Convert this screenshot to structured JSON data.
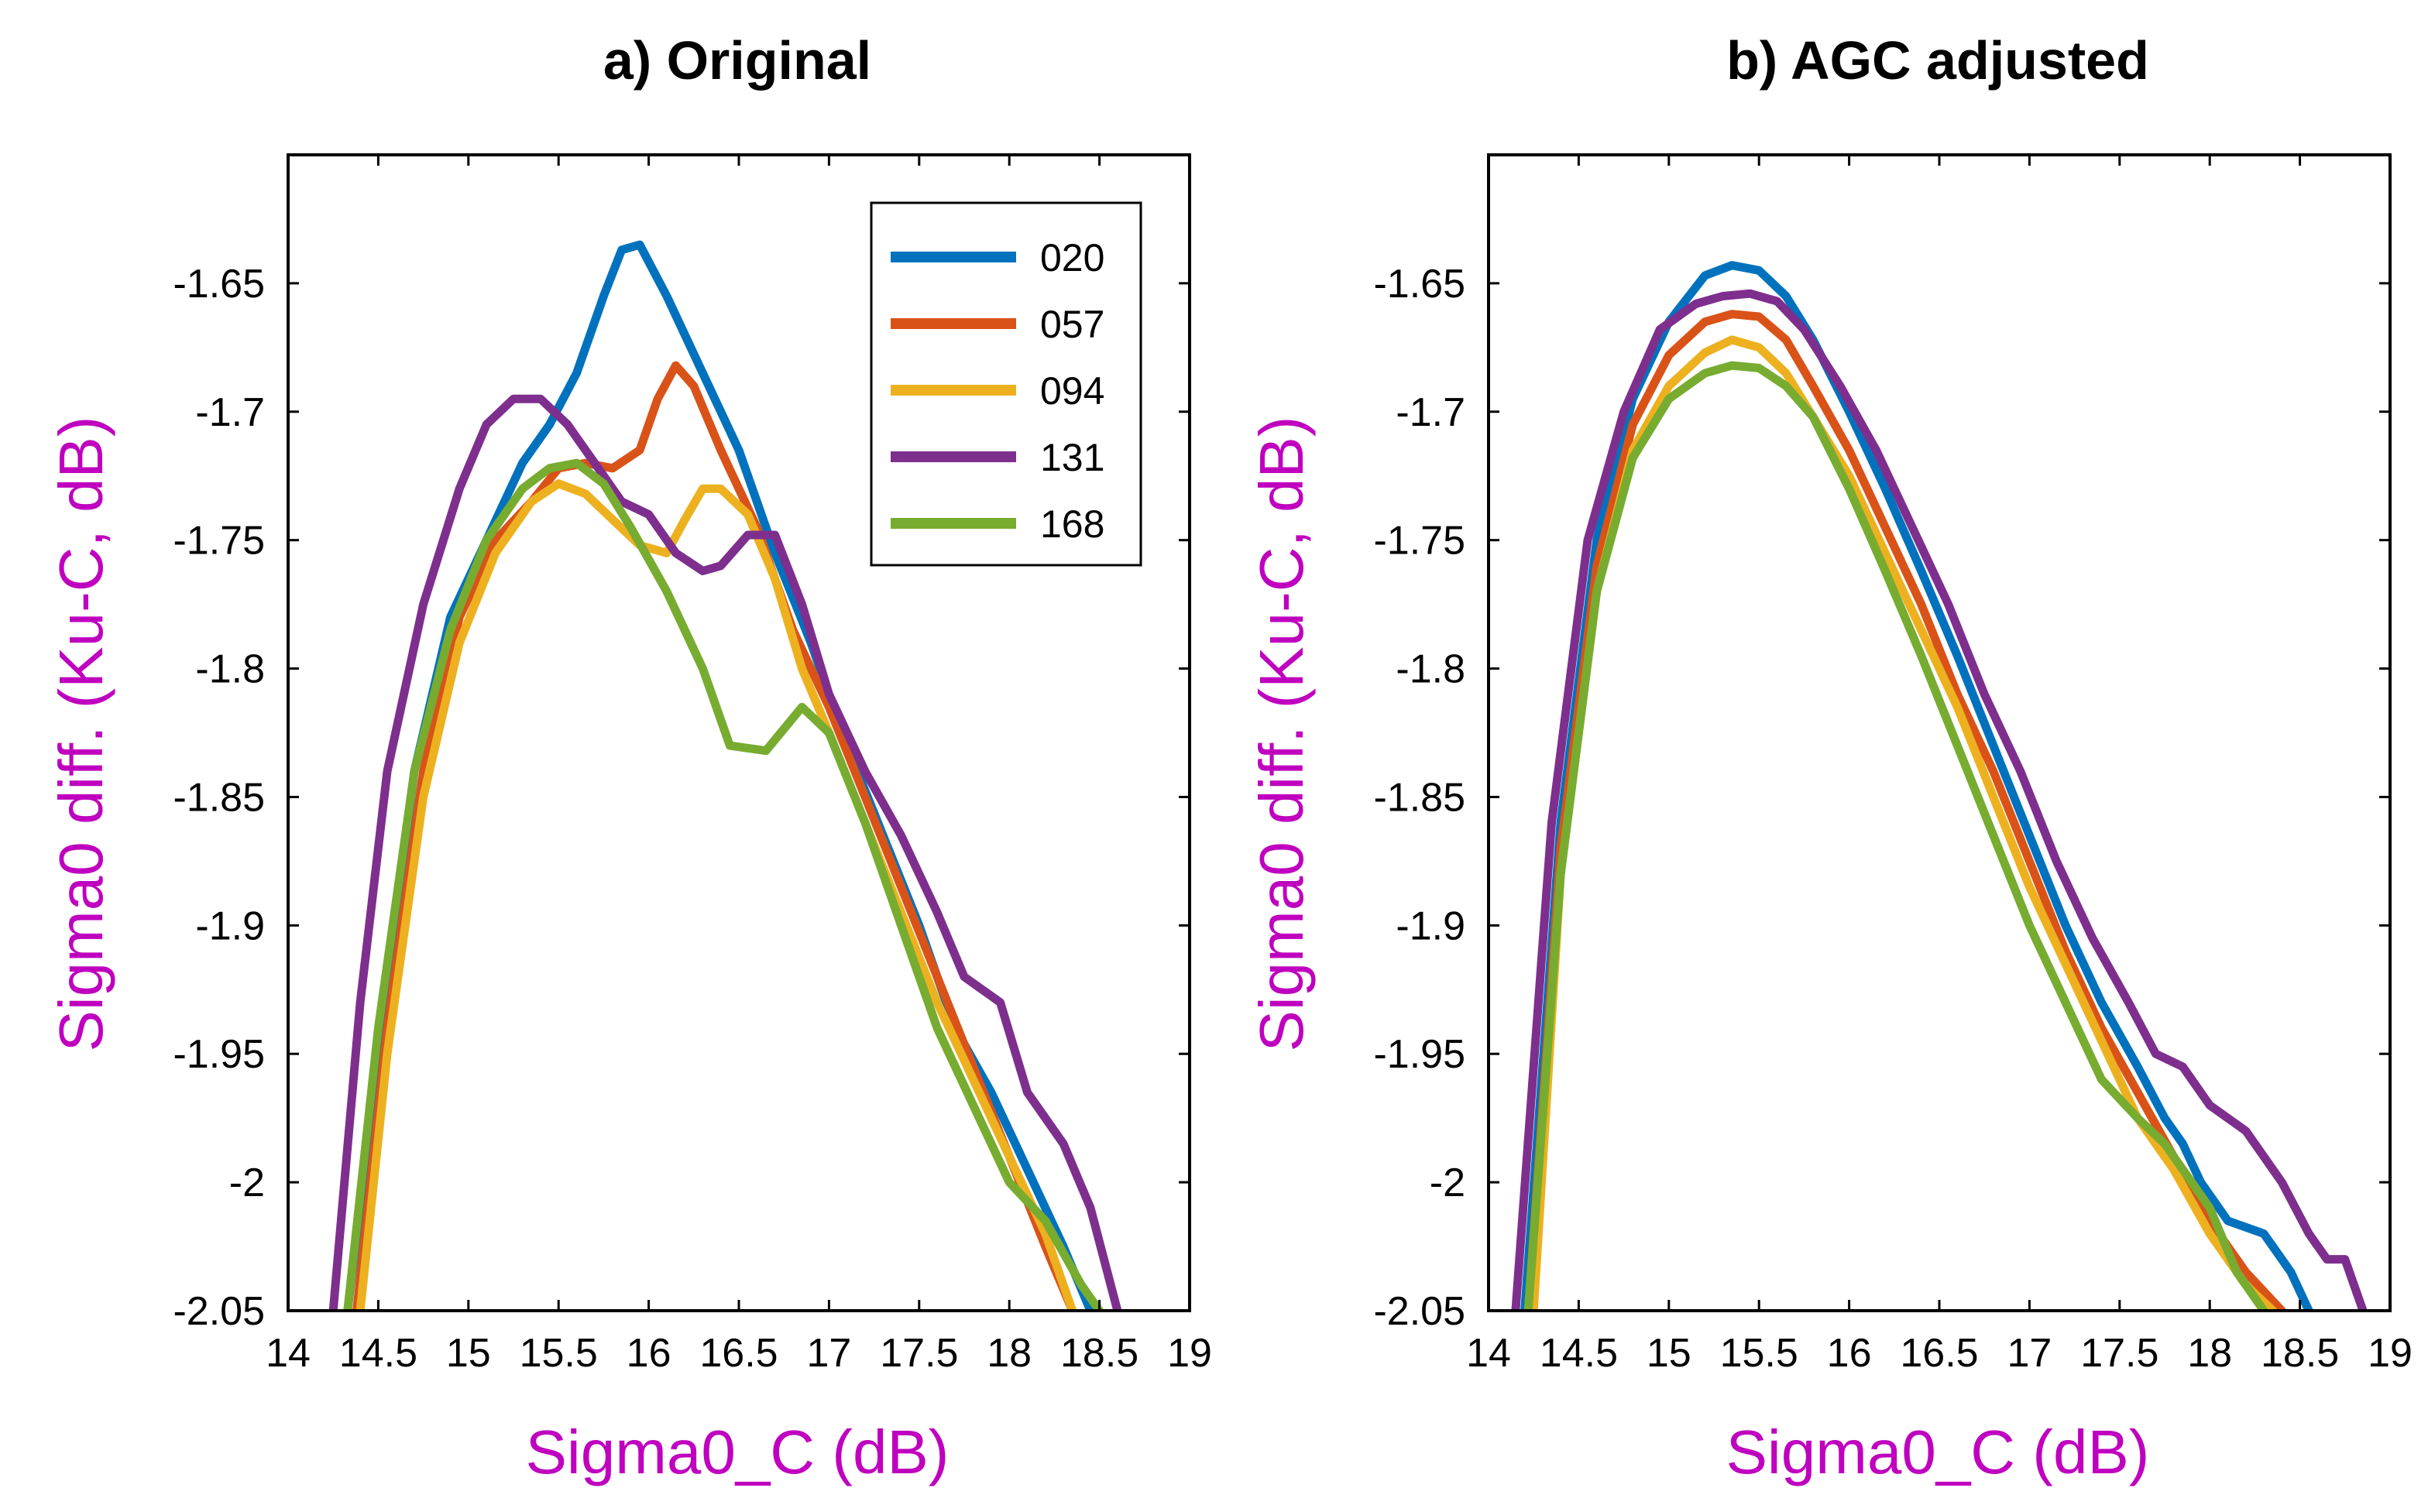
{
  "colors": {
    "axis_label": "#bf00bf",
    "axis": "#000000",
    "series": [
      "#0072bd",
      "#d95319",
      "#edb120",
      "#7e2f8e",
      "#77ac30"
    ]
  },
  "chart_data": [
    {
      "type": "line",
      "title": "a)  Original",
      "xlabel": "Sigma0_C (dB)",
      "ylabel": "Sigma0 diff. (Ku-C, dB)",
      "xlim": [
        14,
        19
      ],
      "ylim": [
        -2.05,
        -1.6
      ],
      "xticks": [
        14,
        14.5,
        15,
        15.5,
        16,
        16.5,
        17,
        17.5,
        18,
        18.5,
        19
      ],
      "xtick_labels": [
        "14",
        "14.5",
        "15",
        "15.5",
        "16",
        "16.5",
        "17",
        "17.5",
        "18",
        "18.5",
        "19"
      ],
      "yticks": [
        -1.65,
        -1.7,
        -1.75,
        -1.8,
        -1.85,
        -1.9,
        -1.95,
        -2,
        -2.05
      ],
      "ytick_labels": [
        "-1.65",
        "-1.7",
        "-1.75",
        "-1.8",
        "-1.85",
        "-1.9",
        "-1.95",
        "-2",
        "-2.05"
      ],
      "legend": {
        "location": "top-right",
        "entries": [
          "020",
          "057",
          "094",
          "131",
          "168"
        ]
      },
      "series": [
        {
          "name": "020",
          "x": [
            14.33,
            14.5,
            14.7,
            14.9,
            15.1,
            15.3,
            15.45,
            15.6,
            15.75,
            15.85,
            15.95,
            16.1,
            16.3,
            16.5,
            16.7,
            16.9,
            17.1,
            17.3,
            17.5,
            17.7,
            17.9,
            18.1,
            18.3,
            18.45
          ],
          "y": [
            -2.05,
            -1.95,
            -1.84,
            -1.78,
            -1.75,
            -1.72,
            -1.705,
            -1.685,
            -1.655,
            -1.637,
            -1.635,
            -1.655,
            -1.685,
            -1.715,
            -1.755,
            -1.79,
            -1.83,
            -1.865,
            -1.9,
            -1.94,
            -1.965,
            -1.995,
            -2.025,
            -2.05
          ]
        },
        {
          "name": "057",
          "x": [
            14.38,
            14.55,
            14.75,
            14.95,
            15.15,
            15.35,
            15.5,
            15.65,
            15.8,
            15.95,
            16.05,
            16.15,
            16.25,
            16.4,
            16.6,
            16.8,
            17.0,
            17.2,
            17.4,
            17.6,
            17.8,
            18.0,
            18.2,
            18.35
          ],
          "y": [
            -2.05,
            -1.94,
            -1.84,
            -1.78,
            -1.75,
            -1.735,
            -1.722,
            -1.72,
            -1.722,
            -1.715,
            -1.695,
            -1.682,
            -1.69,
            -1.715,
            -1.745,
            -1.785,
            -1.815,
            -1.85,
            -1.885,
            -1.92,
            -1.955,
            -1.99,
            -2.025,
            -2.05
          ]
        },
        {
          "name": "094",
          "x": [
            14.4,
            14.55,
            14.75,
            14.95,
            15.15,
            15.35,
            15.5,
            15.65,
            15.8,
            15.95,
            16.1,
            16.2,
            16.3,
            16.4,
            16.55,
            16.7,
            16.85,
            17.0,
            17.2,
            17.4,
            17.6,
            17.8,
            18.0,
            18.2,
            18.35
          ],
          "y": [
            -2.05,
            -1.95,
            -1.85,
            -1.79,
            -1.755,
            -1.735,
            -1.728,
            -1.732,
            -1.742,
            -1.752,
            -1.755,
            -1.742,
            -1.73,
            -1.73,
            -1.74,
            -1.765,
            -1.8,
            -1.825,
            -1.86,
            -1.895,
            -1.93,
            -1.96,
            -1.99,
            -2.02,
            -2.05
          ]
        },
        {
          "name": "131",
          "x": [
            14.25,
            14.4,
            14.55,
            14.75,
            14.95,
            15.1,
            15.25,
            15.4,
            15.55,
            15.7,
            15.85,
            16.0,
            16.15,
            16.3,
            16.4,
            16.55,
            16.7,
            16.85,
            17.0,
            17.2,
            17.4,
            17.6,
            17.75,
            17.95,
            18.1,
            18.3,
            18.45,
            18.6
          ],
          "y": [
            -2.05,
            -1.93,
            -1.84,
            -1.775,
            -1.73,
            -1.705,
            -1.695,
            -1.695,
            -1.705,
            -1.72,
            -1.735,
            -1.74,
            -1.755,
            -1.762,
            -1.76,
            -1.748,
            -1.748,
            -1.775,
            -1.81,
            -1.84,
            -1.865,
            -1.895,
            -1.92,
            -1.93,
            -1.965,
            -1.985,
            -2.01,
            -2.05
          ]
        },
        {
          "name": "168",
          "x": [
            14.33,
            14.5,
            14.7,
            14.9,
            15.1,
            15.3,
            15.45,
            15.6,
            15.75,
            15.9,
            16.1,
            16.3,
            16.45,
            16.65,
            16.85,
            17.0,
            17.2,
            17.4,
            17.6,
            17.8,
            18.0,
            18.2,
            18.4,
            18.5
          ],
          "y": [
            -2.05,
            -1.94,
            -1.84,
            -1.785,
            -1.75,
            -1.73,
            -1.722,
            -1.72,
            -1.728,
            -1.745,
            -1.77,
            -1.8,
            -1.83,
            -1.832,
            -1.815,
            -1.825,
            -1.86,
            -1.9,
            -1.94,
            -1.97,
            -2.0,
            -2.015,
            -2.04,
            -2.05
          ]
        }
      ]
    },
    {
      "type": "line",
      "title": "b)  AGC adjusted",
      "xlabel": "Sigma0_C (dB)",
      "ylabel": "Sigma0 diff. (Ku-C, dB)",
      "xlim": [
        14,
        19
      ],
      "ylim": [
        -2.05,
        -1.6
      ],
      "xticks": [
        14,
        14.5,
        15,
        15.5,
        16,
        16.5,
        17,
        17.5,
        18,
        18.5,
        19
      ],
      "xtick_labels": [
        "14",
        "14.5",
        "15",
        "15.5",
        "16",
        "16.5",
        "17",
        "17.5",
        "18",
        "18.5",
        "19"
      ],
      "yticks": [
        -1.65,
        -1.7,
        -1.75,
        -1.8,
        -1.85,
        -1.9,
        -1.95,
        -2,
        -2.05
      ],
      "ytick_labels": [
        "-1.65",
        "-1.7",
        "-1.75",
        "-1.8",
        "-1.85",
        "-1.9",
        "-1.95",
        "-2",
        "-2.05"
      ],
      "series": [
        {
          "name": "020",
          "x": [
            14.2,
            14.4,
            14.6,
            14.8,
            15.0,
            15.2,
            15.35,
            15.5,
            15.65,
            15.8,
            16.0,
            16.2,
            16.4,
            16.6,
            16.8,
            17.0,
            17.2,
            17.4,
            17.6,
            17.75,
            17.85,
            17.95,
            18.1,
            18.3,
            18.45,
            18.55
          ],
          "y": [
            -2.05,
            -1.86,
            -1.75,
            -1.695,
            -1.665,
            -1.647,
            -1.643,
            -1.645,
            -1.655,
            -1.672,
            -1.7,
            -1.73,
            -1.762,
            -1.795,
            -1.83,
            -1.865,
            -1.9,
            -1.93,
            -1.955,
            -1.975,
            -1.985,
            -2.0,
            -2.015,
            -2.02,
            -2.035,
            -2.05
          ]
        },
        {
          "name": "057",
          "x": [
            14.22,
            14.4,
            14.6,
            14.8,
            15.0,
            15.2,
            15.35,
            15.5,
            15.65,
            15.8,
            16.0,
            16.2,
            16.4,
            16.6,
            16.8,
            17.0,
            17.2,
            17.4,
            17.6,
            17.8,
            18.0,
            18.2,
            18.4
          ],
          "y": [
            -2.05,
            -1.87,
            -1.76,
            -1.705,
            -1.678,
            -1.665,
            -1.662,
            -1.663,
            -1.672,
            -1.69,
            -1.715,
            -1.745,
            -1.775,
            -1.81,
            -1.84,
            -1.875,
            -1.91,
            -1.94,
            -1.965,
            -1.99,
            -2.015,
            -2.035,
            -2.05
          ]
        },
        {
          "name": "094",
          "x": [
            14.25,
            14.4,
            14.6,
            14.8,
            15.0,
            15.2,
            15.35,
            15.5,
            15.65,
            15.8,
            16.0,
            16.2,
            16.4,
            16.6,
            16.8,
            17.0,
            17.2,
            17.4,
            17.6,
            17.8,
            18.0,
            18.2,
            18.35
          ],
          "y": [
            -2.05,
            -1.88,
            -1.77,
            -1.715,
            -1.69,
            -1.677,
            -1.672,
            -1.675,
            -1.685,
            -1.702,
            -1.725,
            -1.755,
            -1.785,
            -1.815,
            -1.85,
            -1.885,
            -1.915,
            -1.945,
            -1.975,
            -1.995,
            -2.02,
            -2.04,
            -2.05
          ]
        },
        {
          "name": "131",
          "x": [
            14.15,
            14.35,
            14.55,
            14.75,
            14.95,
            15.15,
            15.3,
            15.45,
            15.6,
            15.75,
            15.95,
            16.15,
            16.35,
            16.55,
            16.75,
            16.95,
            17.15,
            17.35,
            17.55,
            17.7,
            17.85,
            18.0,
            18.2,
            18.4,
            18.55,
            18.65,
            18.75,
            18.85
          ],
          "y": [
            -2.05,
            -1.86,
            -1.75,
            -1.7,
            -1.668,
            -1.658,
            -1.655,
            -1.654,
            -1.657,
            -1.668,
            -1.69,
            -1.715,
            -1.745,
            -1.775,
            -1.81,
            -1.84,
            -1.875,
            -1.905,
            -1.93,
            -1.95,
            -1.955,
            -1.97,
            -1.98,
            -2.0,
            -2.02,
            -2.03,
            -2.03,
            -2.05
          ]
        },
        {
          "name": "168",
          "x": [
            14.22,
            14.4,
            14.6,
            14.8,
            15.0,
            15.2,
            15.35,
            15.5,
            15.65,
            15.8,
            16.0,
            16.2,
            16.4,
            16.6,
            16.8,
            17.0,
            17.2,
            17.4,
            17.6,
            17.75,
            17.85,
            18.0,
            18.15,
            18.3
          ],
          "y": [
            -2.05,
            -1.88,
            -1.77,
            -1.718,
            -1.695,
            -1.685,
            -1.682,
            -1.683,
            -1.69,
            -1.702,
            -1.73,
            -1.762,
            -1.795,
            -1.83,
            -1.865,
            -1.9,
            -1.93,
            -1.96,
            -1.975,
            -1.985,
            -1.995,
            -2.01,
            -2.035,
            -2.05
          ]
        }
      ]
    }
  ]
}
